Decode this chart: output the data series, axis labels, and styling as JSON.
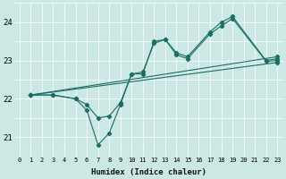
{
  "xlabel": "Humidex (Indice chaleur)",
  "bg_color": "#cce8e4",
  "line_color": "#1a6e64",
  "grid_major_color": "#ffffff",
  "grid_minor_color": "#b0d8d4",
  "xlim": [
    -0.5,
    23.5
  ],
  "ylim": [
    20.5,
    24.5
  ],
  "yticks": [
    21,
    22,
    23,
    24
  ],
  "xticks": [
    0,
    1,
    2,
    3,
    4,
    5,
    6,
    7,
    8,
    9,
    10,
    11,
    12,
    13,
    14,
    15,
    16,
    17,
    18,
    19,
    20,
    21,
    22,
    23
  ],
  "lines": [
    {
      "x": [
        1,
        3,
        5,
        6,
        7,
        8,
        9,
        10,
        11,
        12,
        13,
        14,
        15,
        17,
        18,
        19,
        22,
        23
      ],
      "y": [
        22.1,
        22.1,
        22.0,
        21.7,
        20.8,
        21.1,
        21.85,
        22.65,
        22.65,
        23.5,
        23.55,
        23.2,
        23.1,
        23.75,
        24.0,
        24.15,
        23.0,
        23.05
      ]
    },
    {
      "x": [
        1,
        3,
        5,
        6,
        7,
        8,
        9,
        10,
        11,
        12,
        13,
        14,
        15,
        17,
        18,
        19,
        22,
        23
      ],
      "y": [
        22.1,
        22.1,
        22.0,
        21.85,
        21.5,
        21.55,
        21.9,
        22.65,
        22.7,
        23.45,
        23.55,
        23.15,
        23.05,
        23.7,
        23.9,
        24.1,
        22.98,
        23.0
      ]
    },
    {
      "x": [
        1,
        23
      ],
      "y": [
        22.1,
        23.1
      ]
    },
    {
      "x": [
        1,
        23
      ],
      "y": [
        22.1,
        22.95
      ]
    }
  ]
}
